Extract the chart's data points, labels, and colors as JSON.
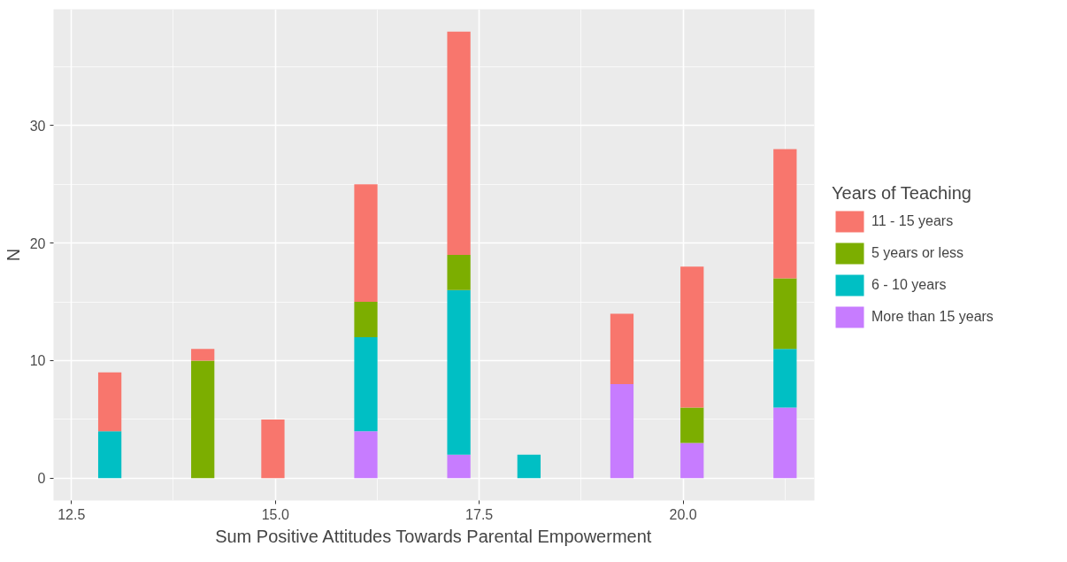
{
  "chart_data": {
    "type": "bar",
    "stacked": true,
    "xlabel": "Sum Positive Attitudes Towards Parental Empowerment",
    "ylabel": "N",
    "legend_title": "Years of Teaching",
    "legend": "right",
    "grid": true,
    "x": [
      12.97,
      14.11,
      14.97,
      16.11,
      17.25,
      18.11,
      19.25,
      20.11,
      21.25
    ],
    "series": [
      {
        "name": "More than 15 years",
        "color": "#c77cff",
        "values": [
          0,
          0,
          0,
          4,
          2,
          0,
          8,
          3,
          6
        ]
      },
      {
        "name": "6 - 10 years",
        "color": "#00bfc4",
        "values": [
          4,
          0,
          0,
          8,
          14,
          2,
          0,
          0,
          5
        ]
      },
      {
        "name": "5 years or less",
        "color": "#7cae00",
        "values": [
          0,
          10,
          0,
          3,
          3,
          0,
          0,
          3,
          6
        ]
      },
      {
        "name": "11 - 15 years",
        "color": "#f8766d",
        "values": [
          5,
          1,
          5,
          10,
          19,
          0,
          6,
          12,
          11
        ]
      }
    ],
    "xlim": [
      12.28,
      21.61
    ],
    "ylim": [
      -1.9,
      39.9
    ],
    "xticks": [
      {
        "value": 12.5,
        "label": "12.5"
      },
      {
        "value": 15,
        "label": "15.0"
      },
      {
        "value": 17.5,
        "label": "17.5"
      },
      {
        "value": 20,
        "label": "20.0"
      }
    ],
    "yticks": [
      0,
      10,
      20,
      30
    ]
  }
}
